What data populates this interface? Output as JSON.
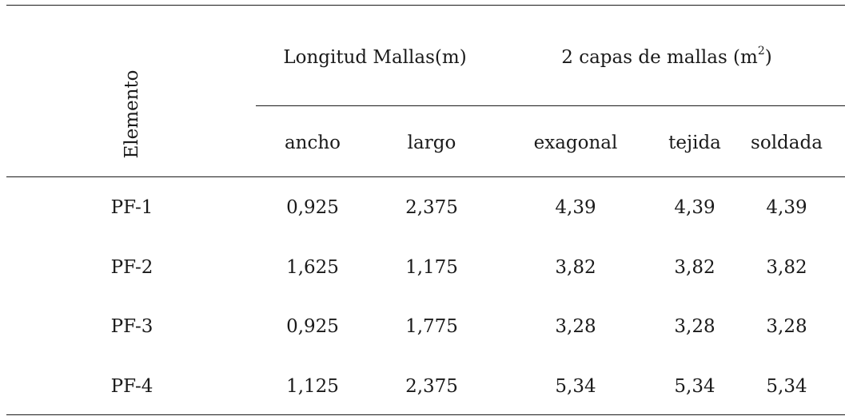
{
  "table": {
    "element_header": "Elemento",
    "group_headers": {
      "length": "Longitud Mallas(m)",
      "layers_prefix": "2 capas de mallas (m",
      "layers_sup": "2",
      "layers_suffix": ")"
    },
    "sub_headers": [
      "ancho",
      "largo",
      "exagonal",
      "tejida",
      "soldada"
    ],
    "rows": [
      {
        "element": "PF-1",
        "ancho": "0,925",
        "largo": "2,375",
        "exagonal": "4,39",
        "tejida": "4,39",
        "soldada": "4,39"
      },
      {
        "element": "PF-2",
        "ancho": "1,625",
        "largo": "1,175",
        "exagonal": "3,82",
        "tejida": "3,82",
        "soldada": "3,82"
      },
      {
        "element": "PF-3",
        "ancho": "0,925",
        "largo": "1,775",
        "exagonal": "3,28",
        "tejida": "3,28",
        "soldada": "3,28"
      },
      {
        "element": "PF-4",
        "ancho": "1,125",
        "largo": "2,375",
        "exagonal": "5,34",
        "tejida": "5,34",
        "soldada": "5,34"
      }
    ]
  }
}
